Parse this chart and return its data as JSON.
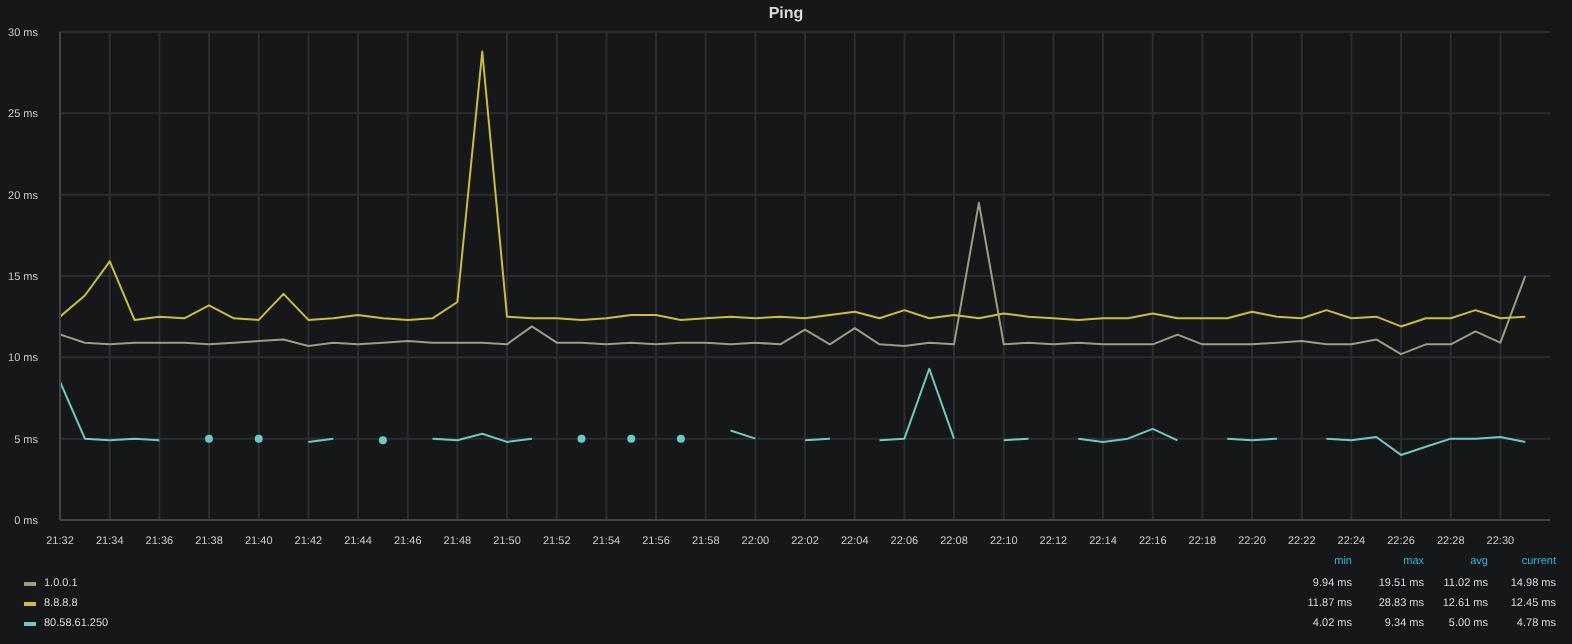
{
  "chart_data": {
    "type": "line",
    "title": "Ping",
    "x": [
      21.5333,
      21.55,
      21.5667,
      21.5833,
      21.6,
      21.6167,
      21.6333,
      21.65,
      21.6667,
      21.6833,
      21.7,
      21.7167,
      21.7333,
      21.75,
      21.7667,
      21.7833,
      21.8,
      21.8167,
      21.8333,
      21.85,
      21.8667,
      21.8833,
      21.9,
      21.9167,
      21.9333,
      21.95,
      21.9667,
      21.9833,
      22.0,
      22.0167,
      22.0333,
      22.05,
      22.0667,
      22.0833,
      22.1,
      22.1167,
      22.1333,
      22.15,
      22.1667,
      22.1833,
      22.2,
      22.2167,
      22.2333,
      22.25,
      22.2667,
      22.2833,
      22.3,
      22.3167,
      22.3333,
      22.35,
      22.3667,
      22.3833,
      22.4,
      22.4167,
      22.4333,
      22.45,
      22.4667,
      22.4833,
      22.5,
      22.5167
    ],
    "series": [
      {
        "name": "1.0.0.1",
        "color": "#9a9d80",
        "values": [
          11.4,
          10.9,
          10.8,
          10.9,
          10.9,
          10.9,
          10.8,
          10.9,
          11.0,
          11.1,
          10.7,
          10.9,
          10.8,
          10.9,
          11.0,
          10.9,
          10.9,
          10.9,
          10.8,
          11.9,
          10.9,
          10.9,
          10.8,
          10.9,
          10.8,
          10.9,
          10.9,
          10.8,
          10.9,
          10.8,
          11.7,
          10.8,
          11.8,
          10.8,
          10.7,
          10.9,
          10.8,
          19.5,
          10.8,
          10.9,
          10.8,
          10.9,
          10.8,
          10.8,
          10.8,
          11.4,
          10.8,
          10.8,
          10.8,
          10.9,
          11.0,
          10.8,
          10.8,
          11.1,
          10.2,
          10.8,
          10.8,
          11.6,
          10.9,
          15.0
        ]
      },
      {
        "name": "8.8.8.8",
        "color": "#cbbd3f",
        "values": [
          12.5,
          13.8,
          15.9,
          12.3,
          12.5,
          12.4,
          13.2,
          12.4,
          12.3,
          13.9,
          12.3,
          12.4,
          12.6,
          12.4,
          12.3,
          12.4,
          13.4,
          28.8,
          12.5,
          12.4,
          12.4,
          12.3,
          12.4,
          12.6,
          12.6,
          12.3,
          12.4,
          12.5,
          12.4,
          12.5,
          12.4,
          12.6,
          12.8,
          12.4,
          12.9,
          12.4,
          12.6,
          12.4,
          12.7,
          12.5,
          12.4,
          12.3,
          12.4,
          12.4,
          12.7,
          12.4,
          12.4,
          12.4,
          12.8,
          12.5,
          12.4,
          12.9,
          12.4,
          12.5,
          11.9,
          12.4,
          12.4,
          12.9,
          12.4,
          12.5
        ]
      },
      {
        "name": "80.58.61.250",
        "color": "#6fc8c2",
        "values": [
          8.5,
          5.0,
          4.9,
          5.0,
          4.9,
          null,
          5.0,
          null,
          5.0,
          null,
          4.8,
          5.0,
          null,
          4.9,
          null,
          5.0,
          4.9,
          5.3,
          4.8,
          5.0,
          null,
          5.0,
          null,
          5.0,
          null,
          5.0,
          null,
          5.5,
          5.0,
          null,
          4.9,
          5.0,
          null,
          4.9,
          5.0,
          9.3,
          5.0,
          null,
          4.9,
          5.0,
          null,
          5.0,
          4.8,
          5.0,
          5.6,
          4.9,
          null,
          5.0,
          4.9,
          5.0,
          null,
          5.0,
          4.9,
          5.1,
          4.0,
          4.5,
          5.0,
          5.0,
          5.1,
          4.8
        ]
      }
    ],
    "xlim": [
      21.5333,
      22.5333
    ],
    "xticks": [
      {
        "value": 21.5333,
        "label": "21:32"
      },
      {
        "value": 21.5667,
        "label": "21:34"
      },
      {
        "value": 21.6,
        "label": "21:36"
      },
      {
        "value": 21.6333,
        "label": "21:38"
      },
      {
        "value": 21.6667,
        "label": "21:40"
      },
      {
        "value": 21.7,
        "label": "21:42"
      },
      {
        "value": 21.7333,
        "label": "21:44"
      },
      {
        "value": 21.7667,
        "label": "21:46"
      },
      {
        "value": 21.8,
        "label": "21:48"
      },
      {
        "value": 21.8333,
        "label": "21:50"
      },
      {
        "value": 21.8667,
        "label": "21:52"
      },
      {
        "value": 21.9,
        "label": "21:54"
      },
      {
        "value": 21.9333,
        "label": "21:56"
      },
      {
        "value": 21.9667,
        "label": "21:58"
      },
      {
        "value": 22.0,
        "label": "22:00"
      },
      {
        "value": 22.0333,
        "label": "22:02"
      },
      {
        "value": 22.0667,
        "label": "22:04"
      },
      {
        "value": 22.1,
        "label": "22:06"
      },
      {
        "value": 22.1333,
        "label": "22:08"
      },
      {
        "value": 22.1667,
        "label": "22:10"
      },
      {
        "value": 22.2,
        "label": "22:12"
      },
      {
        "value": 22.2333,
        "label": "22:14"
      },
      {
        "value": 22.2667,
        "label": "22:16"
      },
      {
        "value": 22.3,
        "label": "22:18"
      },
      {
        "value": 22.3333,
        "label": "22:20"
      },
      {
        "value": 22.3667,
        "label": "22:22"
      },
      {
        "value": 22.4,
        "label": "22:24"
      },
      {
        "value": 22.4333,
        "label": "22:26"
      },
      {
        "value": 22.4667,
        "label": "22:28"
      },
      {
        "value": 22.5,
        "label": "22:30"
      }
    ],
    "ylim": [
      0,
      30
    ],
    "yticks": [
      {
        "value": 0,
        "label": "0 ms"
      },
      {
        "value": 5,
        "label": "5 ms"
      },
      {
        "value": 10,
        "label": "10 ms"
      },
      {
        "value": 15,
        "label": "15 ms"
      },
      {
        "value": 20,
        "label": "20 ms"
      },
      {
        "value": 25,
        "label": "25 ms"
      },
      {
        "value": 30,
        "label": "30 ms"
      }
    ],
    "grid": true,
    "legend": "bottom",
    "marker": "none",
    "line_style": "solid",
    "annotations": [
      "min",
      "max",
      "avg",
      "current",
      "9.94 ms",
      "19.51 ms",
      "11.02 ms",
      "14.98 ms",
      "11.87 ms",
      "28.83 ms",
      "12.61 ms",
      "12.45 ms",
      "4.02 ms",
      "9.34 ms",
      "5.00 ms",
      "4.78 ms"
    ]
  }
}
